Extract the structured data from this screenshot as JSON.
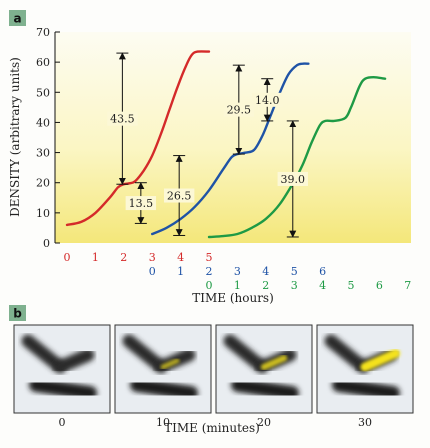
{
  "chart_data": {
    "type": "line",
    "panel_label": "a",
    "ylabel": "DENSITY (arbitrary units)",
    "xlabel": "TIME (hours)",
    "ylim": [
      0,
      70
    ],
    "yticks": [
      "0",
      "10",
      "20",
      "30",
      "40",
      "50",
      "60",
      "70"
    ],
    "background": "yellow-gradient",
    "grid": false,
    "legend": "none",
    "series": [
      {
        "color": "#d42a2a",
        "x_tick_labels": [
          "0",
          "1",
          "2",
          "3",
          "4",
          "5"
        ],
        "points": [
          [
            0,
            6
          ],
          [
            0.5,
            7
          ],
          [
            1,
            10
          ],
          [
            1.5,
            15
          ],
          [
            1.8,
            18.5
          ],
          [
            2,
            19.5
          ],
          [
            2.2,
            19.8
          ],
          [
            2.4,
            20.5
          ],
          [
            2.7,
            24
          ],
          [
            3,
            29
          ],
          [
            3.3,
            36
          ],
          [
            3.6,
            44
          ],
          [
            3.9,
            52
          ],
          [
            4.2,
            59
          ],
          [
            4.4,
            62.5
          ],
          [
            4.6,
            63.5
          ],
          [
            5,
            63.5
          ]
        ]
      },
      {
        "color": "#1f53a6",
        "x_tick_labels": [
          "0",
          "1",
          "2",
          "3",
          "4",
          "5",
          "6"
        ],
        "points": [
          [
            0,
            3
          ],
          [
            0.5,
            5
          ],
          [
            1,
            8
          ],
          [
            1.5,
            12
          ],
          [
            2,
            17.5
          ],
          [
            2.5,
            24.5
          ],
          [
            2.8,
            28.5
          ],
          [
            3,
            29.5
          ],
          [
            3.3,
            30
          ],
          [
            3.6,
            31
          ],
          [
            3.9,
            36
          ],
          [
            4.2,
            43
          ],
          [
            4.5,
            50
          ],
          [
            4.8,
            56
          ],
          [
            5.1,
            59
          ],
          [
            5.3,
            59.5
          ],
          [
            5.5,
            59.5
          ]
        ]
      },
      {
        "color": "#1e9a45",
        "x_tick_labels": [
          "0",
          "1",
          "2",
          "3",
          "4",
          "5",
          "6",
          "7"
        ],
        "points": [
          [
            0,
            2
          ],
          [
            0.5,
            2.3
          ],
          [
            1,
            3
          ],
          [
            1.5,
            5
          ],
          [
            2,
            8
          ],
          [
            2.5,
            13
          ],
          [
            3,
            20.5
          ],
          [
            3.3,
            26
          ],
          [
            3.6,
            33
          ],
          [
            3.9,
            39
          ],
          [
            4.1,
            40.5
          ],
          [
            4.4,
            40.5
          ],
          [
            4.8,
            41.5
          ],
          [
            5,
            45
          ],
          [
            5.3,
            52
          ],
          [
            5.5,
            54.5
          ],
          [
            5.8,
            55
          ],
          [
            6.2,
            54.5
          ]
        ]
      }
    ],
    "annotations": [
      {
        "label": "43.5",
        "x_hours": 1.95,
        "y_top": 63,
        "y_bottom": 19.5
      },
      {
        "label": "13.5",
        "x_hours": 2.6,
        "y_top": 20,
        "y_bottom": 6.5
      },
      {
        "label": "26.5",
        "x_hours": 3.95,
        "y_top": 29,
        "y_bottom": 2.5
      },
      {
        "label": "29.5",
        "x_hours": 6.05,
        "y_top": 59,
        "y_bottom": 29.5
      },
      {
        "label": "14.0",
        "x_hours": 7.05,
        "y_top": 54.5,
        "y_bottom": 40.5
      },
      {
        "label": "39.0",
        "x_hours": 7.95,
        "y_top": 40.5,
        "y_bottom": 2
      }
    ]
  },
  "panel_b": {
    "label": "b",
    "xlabel": "TIME (minutes)",
    "frames": [
      {
        "time": "0",
        "fluorescence": 0.0
      },
      {
        "time": "10",
        "fluorescence": 0.3
      },
      {
        "time": "20",
        "fluorescence": 0.55
      },
      {
        "time": "30",
        "fluorescence": 1.0
      }
    ]
  }
}
